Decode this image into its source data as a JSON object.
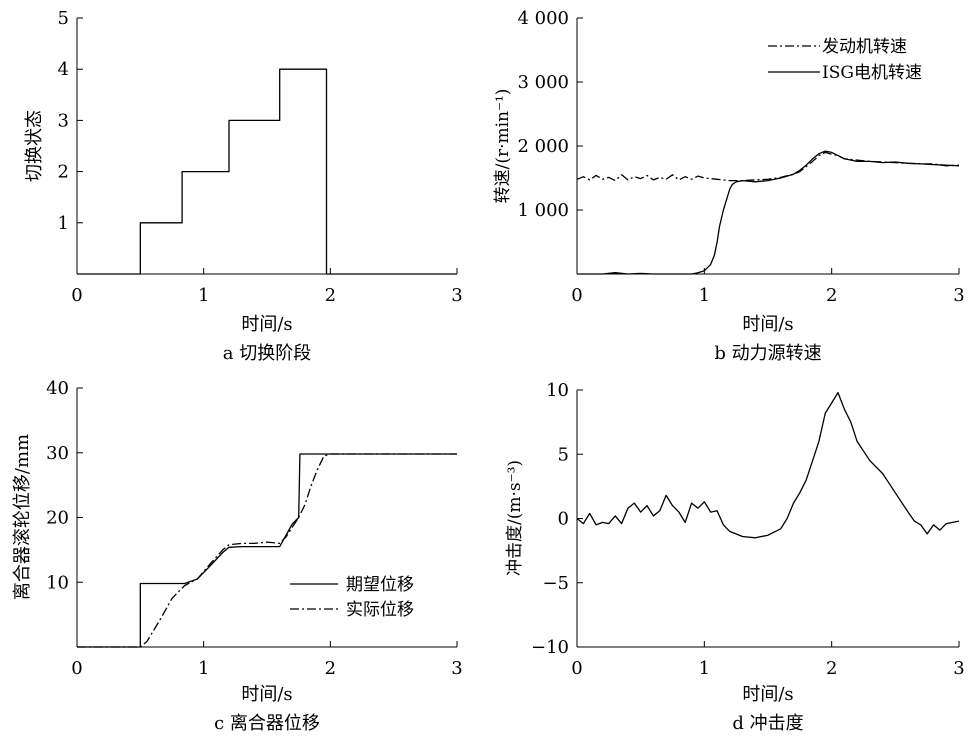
{
  "figure": {
    "background": "#ffffff",
    "line_color": "#000000"
  },
  "chart_data": [
    {
      "type": "line",
      "panel": "a",
      "caption": "a 切换阶段",
      "xlabel": "时间/s",
      "ylabel": "切换状态",
      "xlim": [
        0,
        3
      ],
      "ylim": [
        0,
        5
      ],
      "xticks": [
        0,
        1,
        2,
        3
      ],
      "xtick_labels": [
        "0",
        "1",
        "2",
        "3"
      ],
      "yticks": [
        1,
        2,
        3,
        4,
        5
      ],
      "ytick_labels": [
        "1",
        "2",
        "3",
        "4",
        "5"
      ],
      "series": [
        {
          "style": "solid",
          "x": [
            0,
            0.5,
            0.5,
            0.83,
            0.83,
            1.2,
            1.2,
            1.6,
            1.6,
            1.97,
            1.97,
            3.0
          ],
          "y": [
            0,
            0,
            1,
            1,
            2,
            2,
            3,
            3,
            4,
            4,
            0,
            0
          ]
        }
      ]
    },
    {
      "type": "line",
      "panel": "b",
      "caption": "b 动力源转速",
      "xlabel": "时间/s",
      "ylabel": "转速/(r·min⁻¹)",
      "xlim": [
        0,
        3
      ],
      "ylim": [
        0,
        4000
      ],
      "xticks": [
        0,
        1,
        2,
        3
      ],
      "xtick_labels": [
        "0",
        "1",
        "2",
        "3"
      ],
      "yticks": [
        1000,
        2000,
        3000,
        4000
      ],
      "ytick_labels": [
        "1 000",
        "2 000",
        "3 000",
        "4 000"
      ],
      "legend": {
        "position": "top-right"
      },
      "series": [
        {
          "name": "发动机转速",
          "style": "dashdot",
          "x": [
            0,
            0.05,
            0.1,
            0.15,
            0.2,
            0.25,
            0.3,
            0.35,
            0.4,
            0.45,
            0.5,
            0.55,
            0.6,
            0.65,
            0.7,
            0.75,
            0.8,
            0.85,
            0.9,
            0.95,
            1.0,
            1.05,
            1.1,
            1.15,
            1.2,
            1.3,
            1.4,
            1.5,
            1.6,
            1.7,
            1.75,
            1.8,
            1.85,
            1.9,
            1.95,
            2.0,
            2.05,
            2.1,
            2.2,
            2.3,
            2.4,
            2.5,
            2.6,
            2.7,
            2.8,
            2.9,
            3.0
          ],
          "y": [
            1480,
            1520,
            1470,
            1540,
            1480,
            1510,
            1460,
            1550,
            1470,
            1520,
            1490,
            1540,
            1470,
            1510,
            1480,
            1550,
            1470,
            1520,
            1480,
            1530,
            1500,
            1490,
            1480,
            1470,
            1460,
            1460,
            1470,
            1480,
            1510,
            1560,
            1600,
            1680,
            1760,
            1850,
            1900,
            1870,
            1850,
            1800,
            1780,
            1760,
            1750,
            1740,
            1730,
            1720,
            1720,
            1690,
            1700
          ]
        },
        {
          "name": "ISG电机转速",
          "style": "solid",
          "x": [
            0,
            0.1,
            0.2,
            0.3,
            0.4,
            0.5,
            0.6,
            0.7,
            0.8,
            0.9,
            0.95,
            1.0,
            1.05,
            1.08,
            1.1,
            1.12,
            1.15,
            1.18,
            1.2,
            1.22,
            1.25,
            1.3,
            1.35,
            1.4,
            1.5,
            1.6,
            1.7,
            1.75,
            1.8,
            1.85,
            1.9,
            1.95,
            2.0,
            2.05,
            2.1,
            2.2,
            2.3,
            2.4,
            2.5,
            2.6,
            2.7,
            2.8,
            2.9,
            3.0
          ],
          "y": [
            0,
            0,
            0,
            20,
            0,
            10,
            0,
            0,
            0,
            0,
            20,
            50,
            150,
            300,
            500,
            750,
            1000,
            1200,
            1330,
            1400,
            1440,
            1460,
            1450,
            1440,
            1460,
            1500,
            1560,
            1620,
            1700,
            1800,
            1880,
            1920,
            1900,
            1850,
            1800,
            1760,
            1760,
            1740,
            1750,
            1730,
            1720,
            1710,
            1700,
            1690
          ]
        }
      ]
    },
    {
      "type": "line",
      "panel": "c",
      "caption": "c 离合器位移",
      "xlabel": "时间/s",
      "ylabel": "离合器滚轮位移/mm",
      "xlim": [
        0,
        3
      ],
      "ylim": [
        0,
        40
      ],
      "xticks": [
        0,
        1,
        2,
        3
      ],
      "xtick_labels": [
        "0",
        "1",
        "2",
        "3"
      ],
      "yticks": [
        10,
        20,
        30,
        40
      ],
      "ytick_labels": [
        "10",
        "20",
        "30",
        "40"
      ],
      "legend": {
        "position": "bottom-right"
      },
      "series": [
        {
          "name": "期望位移",
          "style": "solid",
          "x": [
            0,
            0.5,
            0.5,
            0.85,
            0.95,
            1.05,
            1.15,
            1.2,
            1.3,
            1.4,
            1.6,
            1.7,
            1.75,
            1.76,
            1.8,
            2.0,
            3.0
          ],
          "y": [
            0,
            0,
            9.8,
            9.8,
            10.5,
            12.5,
            14.6,
            15.4,
            15.5,
            15.5,
            15.5,
            19,
            20,
            29.8,
            29.8,
            29.8,
            29.8
          ]
        },
        {
          "name": "实际位移",
          "style": "dashdot",
          "x": [
            0,
            0.5,
            0.55,
            0.65,
            0.75,
            0.85,
            0.95,
            1.05,
            1.15,
            1.2,
            1.3,
            1.4,
            1.5,
            1.6,
            1.65,
            1.7,
            1.75,
            1.8,
            1.85,
            1.9,
            1.95,
            2.0,
            3.0
          ],
          "y": [
            0,
            0,
            0.8,
            4,
            7.5,
            9.5,
            10.5,
            12.8,
            15,
            15.8,
            16,
            16,
            16.2,
            16,
            17,
            18.5,
            20,
            22,
            25,
            27.5,
            29.5,
            29.8,
            29.8
          ]
        }
      ]
    },
    {
      "type": "line",
      "panel": "d",
      "caption": "d 冲击度",
      "xlabel": "时间/s",
      "ylabel": "冲击度/(m·s⁻³)",
      "xlim": [
        0,
        3
      ],
      "ylim": [
        -10,
        10
      ],
      "xticks": [
        0,
        1,
        2,
        3
      ],
      "xtick_labels": [
        "0",
        "1",
        "2",
        "3"
      ],
      "yticks": [
        -10,
        -5,
        0,
        5,
        10
      ],
      "ytick_labels": [
        "−10",
        "−5",
        "0",
        "5",
        "10"
      ],
      "series": [
        {
          "style": "solid",
          "x": [
            0,
            0.05,
            0.1,
            0.15,
            0.2,
            0.25,
            0.3,
            0.35,
            0.4,
            0.45,
            0.5,
            0.55,
            0.6,
            0.65,
            0.7,
            0.75,
            0.8,
            0.85,
            0.9,
            0.95,
            1.0,
            1.05,
            1.1,
            1.15,
            1.2,
            1.3,
            1.4,
            1.5,
            1.6,
            1.65,
            1.7,
            1.75,
            1.8,
            1.85,
            1.9,
            1.95,
            2.0,
            2.05,
            2.1,
            2.15,
            2.2,
            2.3,
            2.4,
            2.5,
            2.6,
            2.65,
            2.7,
            2.75,
            2.8,
            2.85,
            2.9,
            2.95,
            3.0
          ],
          "y": [
            0,
            -0.4,
            0.4,
            -0.5,
            -0.3,
            -0.4,
            0.2,
            -0.4,
            0.8,
            1.2,
            0.5,
            1.0,
            0.2,
            0.6,
            1.8,
            1.0,
            0.5,
            -0.3,
            1.2,
            0.8,
            1.3,
            0.5,
            0.6,
            -0.5,
            -1.0,
            -1.4,
            -1.5,
            -1.3,
            -0.8,
            0.0,
            1.2,
            2.0,
            3.0,
            4.5,
            6.0,
            8.2,
            9.0,
            9.8,
            8.5,
            7.5,
            6.0,
            4.5,
            3.5,
            2.0,
            0.5,
            -0.2,
            -0.5,
            -1.2,
            -0.5,
            -0.9,
            -0.4,
            -0.3,
            -0.2
          ]
        }
      ]
    }
  ]
}
